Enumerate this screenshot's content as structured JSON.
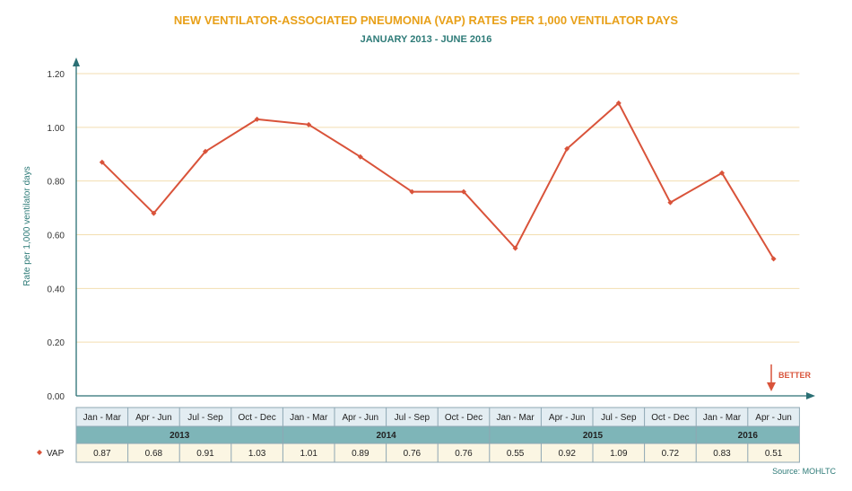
{
  "chart_data": {
    "type": "line",
    "title": "NEW VENTILATOR-ASSOCIATED PNEUMONIA (VAP) RATES PER 1,000 VENTILATOR DAYS",
    "subtitle": "JANUARY 2013 - JUNE 2016",
    "ylabel": "Rate per 1,000 ventilator days",
    "ylim": [
      0,
      1.2
    ],
    "yticks": [
      "0.00",
      "0.20",
      "0.40",
      "0.60",
      "0.80",
      "1.00",
      "1.20"
    ],
    "grid": true,
    "categories": [
      "Jan - Mar",
      "Apr - Jun",
      "Jul - Sep",
      "Oct - Dec",
      "Jan - Mar",
      "Apr - Jun",
      "Jul - Sep",
      "Oct - Dec",
      "Jan - Mar",
      "Apr - Jun",
      "Jul - Sep",
      "Oct - Dec",
      "Jan - Mar",
      "Apr - Jun"
    ],
    "years": [
      {
        "label": "2013",
        "count": 4
      },
      {
        "label": "2014",
        "count": 4
      },
      {
        "label": "2015",
        "count": 4
      },
      {
        "label": "2016",
        "count": 2
      }
    ],
    "series": [
      {
        "name": "VAP",
        "color": "#d9533a",
        "values": [
          0.87,
          0.68,
          0.91,
          1.03,
          1.01,
          0.89,
          0.76,
          0.76,
          0.55,
          0.92,
          1.09,
          0.72,
          0.83,
          0.51
        ],
        "labels": [
          "0.87",
          "0.68",
          "0.91",
          "1.03",
          "1.01",
          "0.89",
          "0.76",
          "0.76",
          "0.55",
          "0.92",
          "1.09",
          "0.72",
          "0.83",
          "0.51"
        ]
      }
    ],
    "annotation": "BETTER",
    "source": "Source: MOHLTC"
  },
  "colors": {
    "title": "#e8a019",
    "subtitle": "#2e7b78",
    "axis": "#2a6f74",
    "grid": "#f3deb0",
    "line": "#d9533a",
    "header_row": "#e3edf2",
    "year_row": "#7eb5b8",
    "value_row": "#fbf6e3",
    "table_border": "#8ea7b3"
  }
}
